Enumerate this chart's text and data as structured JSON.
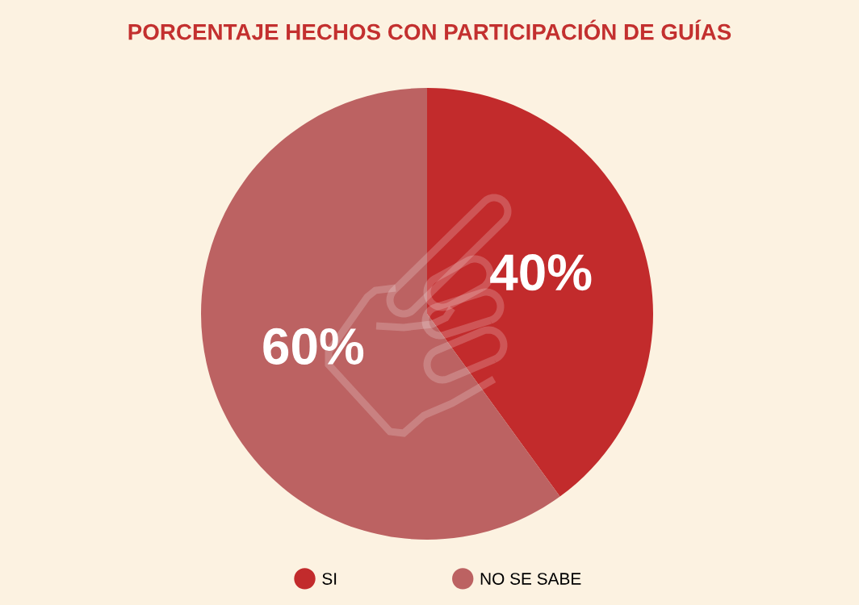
{
  "chart_data": {
    "type": "pie",
    "title": "PORCENTAJE HECHOS CON PARTICIPACIÓN DE GUÍAS",
    "categories": [
      "SI",
      "NO SE SABE"
    ],
    "values": [
      40,
      60
    ],
    "colors": [
      "#c22b2c",
      "#bc6262"
    ],
    "value_labels": [
      "40%",
      "60%"
    ],
    "legend": "bottom"
  }
}
